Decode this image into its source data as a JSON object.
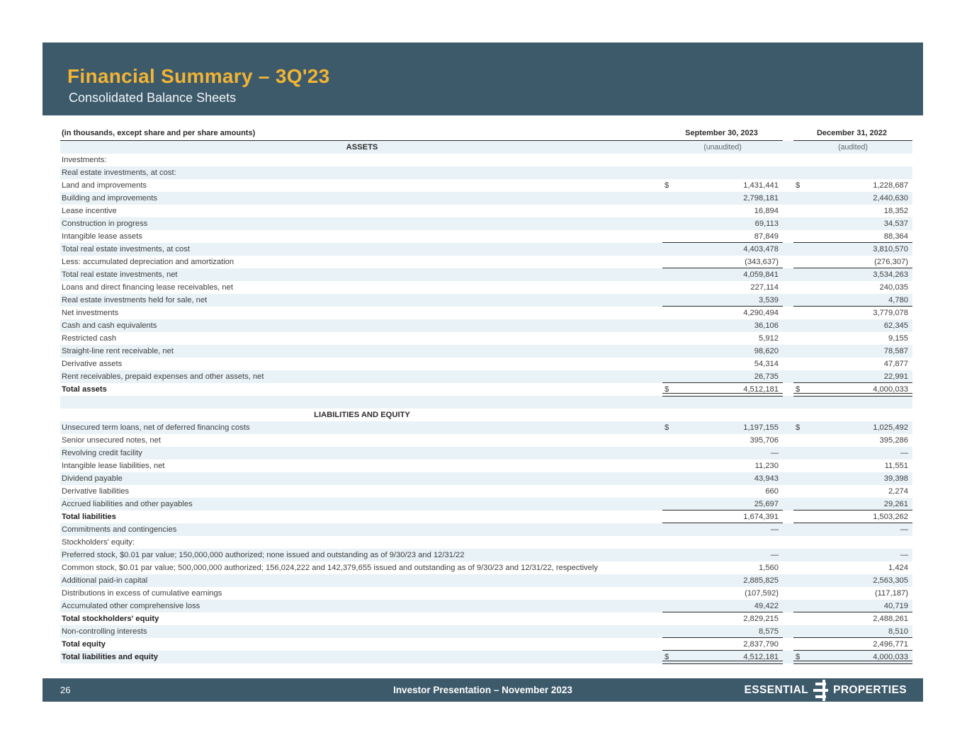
{
  "colors": {
    "band_bg": "#3D5A6B",
    "title_gold": "#F1B434",
    "row_alt_bg": "#E9F2F6",
    "body_text": "#3F3F3F",
    "rule_color": "#2B2B2B"
  },
  "header": {
    "title": "Financial Summary – 3Q'23",
    "subtitle": "Consolidated Balance Sheets"
  },
  "table": {
    "caption": "(in thousands, except share and per share amounts)",
    "currency": "$",
    "columns": [
      "September 30, 2023",
      "December 31, 2022"
    ],
    "rows": [
      {
        "kind": "section",
        "label": "ASSETS",
        "sub1": "(unaudited)",
        "sub2": "(audited)"
      },
      {
        "kind": "item",
        "label": "Investments:"
      },
      {
        "kind": "item",
        "label": "Real estate investments, at cost:"
      },
      {
        "kind": "item",
        "label": "Land and improvements",
        "dollar": true,
        "v1": "1,431,441",
        "v2": "1,228,687"
      },
      {
        "kind": "item",
        "label": "Building and improvements",
        "v1": "2,798,181",
        "v2": "2,440,630"
      },
      {
        "kind": "item",
        "label": "Lease incentive",
        "v1": "16,894",
        "v2": "18,352"
      },
      {
        "kind": "item",
        "label": "Construction in progress",
        "v1": "69,113",
        "v2": "34,537"
      },
      {
        "kind": "item",
        "label": "Intangible lease assets",
        "v1": "87,849",
        "v2": "88,364",
        "rule": "single"
      },
      {
        "kind": "item",
        "label": "Total real estate investments, at cost",
        "v1": "4,403,478",
        "v2": "3,810,570"
      },
      {
        "kind": "item",
        "label": "Less: accumulated depreciation and amortization",
        "v1": "(343,637)",
        "v2": "(276,307)",
        "rule": "single"
      },
      {
        "kind": "item",
        "label": "Total real estate investments, net",
        "v1": "4,059,841",
        "v2": "3,534,263"
      },
      {
        "kind": "item",
        "label": "Loans and direct financing lease receivables, net",
        "v1": "227,114",
        "v2": "240,035"
      },
      {
        "kind": "item",
        "label": "Real estate investments held for sale, net",
        "v1": "3,539",
        "v2": "4,780",
        "rule": "single"
      },
      {
        "kind": "item",
        "label": "Net investments",
        "v1": "4,290,494",
        "v2": "3,779,078"
      },
      {
        "kind": "item",
        "label": "Cash and cash equivalents",
        "v1": "36,106",
        "v2": "62,345"
      },
      {
        "kind": "item",
        "label": "Restricted cash",
        "v1": "5,912",
        "v2": "9,155"
      },
      {
        "kind": "item",
        "label": "Straight-line rent receivable, net",
        "v1": "98,620",
        "v2": "78,587"
      },
      {
        "kind": "item",
        "label": "Derivative assets",
        "v1": "54,314",
        "v2": "47,877"
      },
      {
        "kind": "item",
        "label": "Rent receivables, prepaid expenses and other assets, net",
        "v1": "26,735",
        "v2": "22,991",
        "rule": "single"
      },
      {
        "kind": "item",
        "label": "Total assets",
        "bold": true,
        "dollar": true,
        "v1": "4,512,181",
        "v2": "4,000,033",
        "rule": "double"
      },
      {
        "kind": "blank"
      },
      {
        "kind": "section",
        "label": "LIABILITIES AND EQUITY"
      },
      {
        "kind": "item",
        "label": "Unsecured term loans, net of deferred financing costs",
        "dollar": true,
        "v1": "1,197,155",
        "v2": "1,025,492"
      },
      {
        "kind": "item",
        "label": "Senior unsecured notes, net",
        "v1": "395,706",
        "v2": "395,286"
      },
      {
        "kind": "item",
        "label": "Revolving credit facility",
        "v1": "—",
        "v2": "—"
      },
      {
        "kind": "item",
        "label": "Intangible lease liabilities, net",
        "v1": "11,230",
        "v2": "11,551"
      },
      {
        "kind": "item",
        "label": "Dividend payable",
        "v1": "43,943",
        "v2": "39,398"
      },
      {
        "kind": "item",
        "label": "Derivative liabilities",
        "v1": "660",
        "v2": "2,274"
      },
      {
        "kind": "item",
        "label": "Accrued liabilities and other payables",
        "v1": "25,697",
        "v2": "29,261",
        "rule": "single"
      },
      {
        "kind": "item",
        "label": "Total liabilities",
        "bold": true,
        "v1": "1,674,391",
        "v2": "1,503,262",
        "rule": "single"
      },
      {
        "kind": "item",
        "label": "Commitments and contingencies",
        "v1": "—",
        "v2": "—"
      },
      {
        "kind": "item",
        "label": "Stockholders' equity:"
      },
      {
        "kind": "item",
        "label": "Preferred stock, $0.01 par value; 150,000,000 authorized; none issued and outstanding as of 9/30/23 and 12/31/22",
        "v1": "—",
        "v2": "—"
      },
      {
        "kind": "item",
        "label": "Common stock, $0.01 par value; 500,000,000 authorized; 156,024,222 and 142,379,655 issued and outstanding as of 9/30/23 and 12/31/22, respectively",
        "v1": "1,560",
        "v2": "1,424"
      },
      {
        "kind": "item",
        "label": "Additional paid-in capital",
        "v1": "2,885,825",
        "v2": "2,563,305"
      },
      {
        "kind": "item",
        "label": "Distributions in excess of cumulative earnings",
        "v1": "(107,592)",
        "v2": "(117,187)"
      },
      {
        "kind": "item",
        "label": "Accumulated other comprehensive loss",
        "v1": "49,422",
        "v2": "40,719",
        "rule": "single"
      },
      {
        "kind": "item",
        "label": "Total stockholders' equity",
        "bold": true,
        "v1": "2,829,215",
        "v2": "2,488,261"
      },
      {
        "kind": "item",
        "label": "Non-controlling interests",
        "v1": "8,575",
        "v2": "8,510",
        "rule": "single"
      },
      {
        "kind": "item",
        "label": "Total equity",
        "bold": true,
        "v1": "2,837,790",
        "v2": "2,496,771",
        "rule": "single"
      },
      {
        "kind": "item",
        "label": "Total liabilities and equity",
        "bold": true,
        "dollar": true,
        "v1": "4,512,181",
        "v2": "4,000,033",
        "rule": "double"
      }
    ]
  },
  "footer": {
    "page_number": "26",
    "center_text": "Investor Presentation – November 2023",
    "logo": {
      "left_word": "ESSENTIAL",
      "right_word": "PROPERTIES",
      "icon": "essential-properties-monogram"
    }
  }
}
